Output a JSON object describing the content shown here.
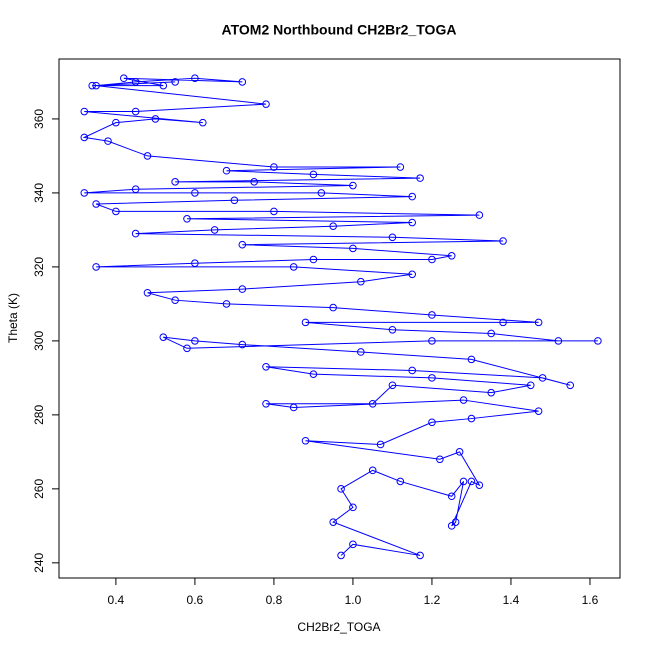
{
  "chart_data": {
    "type": "line",
    "title": "ATOM2 Northbound CH2Br2_TOGA",
    "xlabel": "CH2Br2_TOGA",
    "ylabel": "Theta (K)",
    "x": [
      0.97,
      1.0,
      1.17,
      0.95,
      1.0,
      0.97,
      1.05,
      1.12,
      1.25,
      1.28,
      1.26,
      1.25,
      1.3,
      1.32,
      1.27,
      1.22,
      0.88,
      1.07,
      1.2,
      1.3,
      1.47,
      1.28,
      0.85,
      0.78,
      1.05,
      1.1,
      1.35,
      1.45,
      1.2,
      0.9,
      0.78,
      1.15,
      1.48,
      1.55,
      1.3,
      1.02,
      0.72,
      0.6,
      0.52,
      0.58,
      1.2,
      1.62,
      1.52,
      1.35,
      1.1,
      0.88,
      1.38,
      1.47,
      1.2,
      0.95,
      0.68,
      0.55,
      0.48,
      0.72,
      1.02,
      1.15,
      0.85,
      0.35,
      0.6,
      0.9,
      1.2,
      1.25,
      1.0,
      0.72,
      1.38,
      1.1,
      0.45,
      0.65,
      0.95,
      1.15,
      0.58,
      1.32,
      0.8,
      0.4,
      0.35,
      0.7,
      1.15,
      0.92,
      0.6,
      0.32,
      0.45,
      1.0,
      0.75,
      0.55,
      1.17,
      0.9,
      0.68,
      1.12,
      0.8,
      0.48,
      0.38,
      0.32,
      0.4,
      0.5,
      0.62,
      0.32,
      0.45,
      0.78,
      0.35,
      0.45,
      0.6,
      0.72,
      0.42,
      0.52,
      0.34,
      0.55
    ],
    "series": [
      {
        "color": "#0000ff",
        "values": [
          242,
          245,
          242,
          251,
          255,
          260,
          265,
          262,
          258,
          262,
          251,
          250,
          262,
          261,
          270,
          268,
          273,
          272,
          278,
          279,
          281,
          284,
          282,
          283,
          283,
          288,
          286,
          288,
          290,
          291,
          293,
          292,
          290,
          288,
          295,
          297,
          299,
          300,
          301,
          298,
          300,
          300,
          300,
          302,
          303,
          305,
          305,
          305,
          307,
          309,
          310,
          311,
          313,
          314,
          316,
          318,
          320,
          320,
          321,
          322,
          322,
          323,
          325,
          326,
          327,
          328,
          329,
          330,
          331,
          332,
          333,
          334,
          335,
          335,
          337,
          338,
          339,
          340,
          340,
          340,
          341,
          342,
          343,
          343,
          344,
          345,
          346,
          347,
          347,
          350,
          354,
          355,
          359,
          360,
          359,
          362,
          362,
          364,
          369,
          370,
          371,
          370,
          371,
          369,
          369,
          370
        ]
      }
    ],
    "xlim": [
      0.256,
      1.676
    ],
    "ylim": [
      235.9,
      376.2
    ],
    "xticks": [
      0.4,
      0.6,
      0.8,
      {
        "value": 1,
        "label": "1.0"
      },
      1.2,
      1.4,
      1.6
    ],
    "yticks": [
      240,
      260,
      280,
      300,
      320,
      340,
      360
    ]
  }
}
